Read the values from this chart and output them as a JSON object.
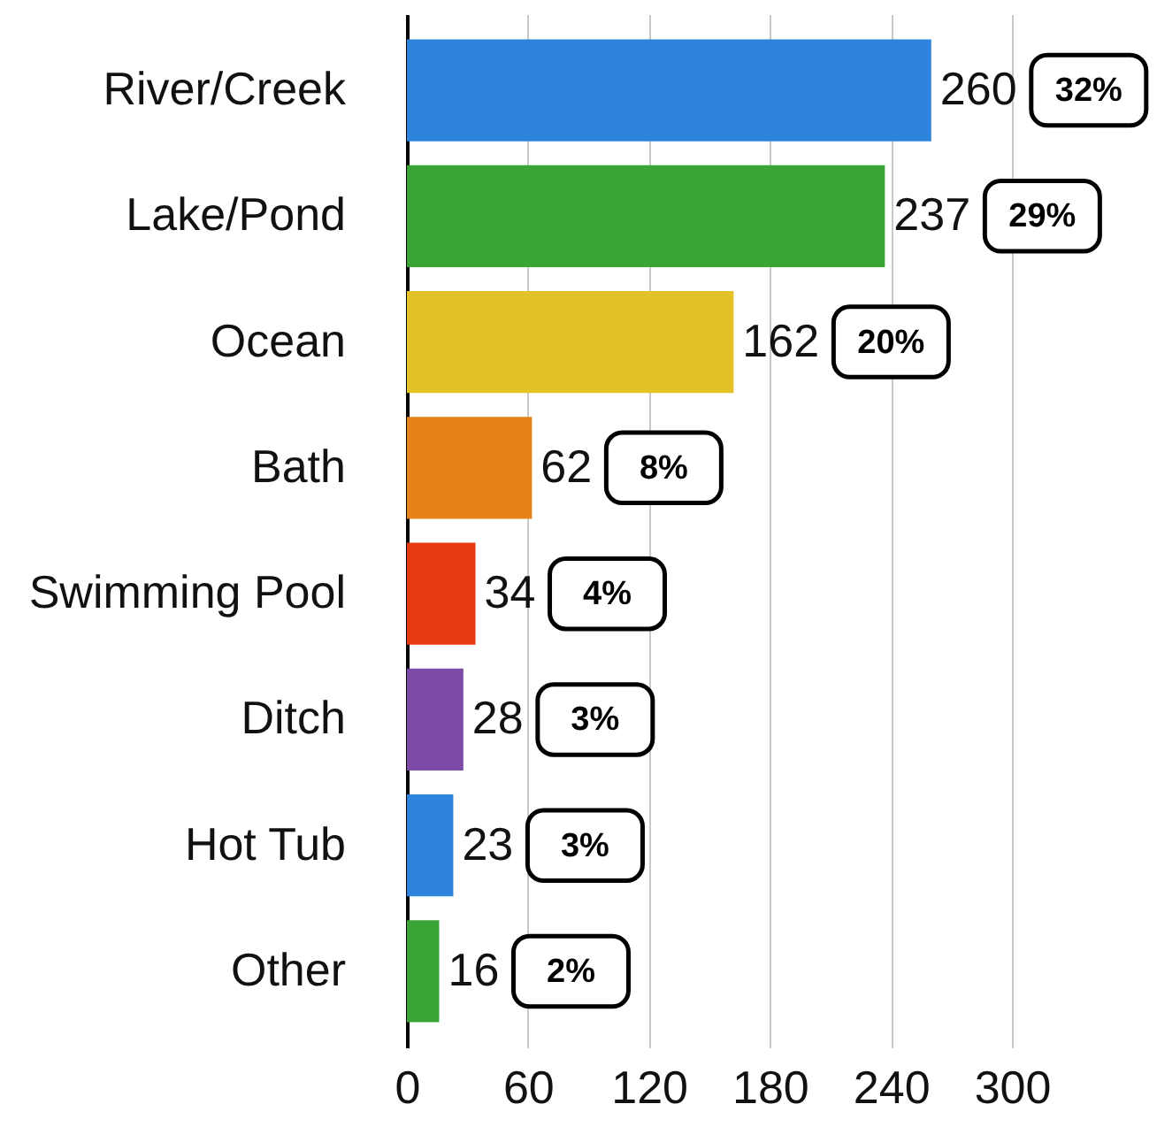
{
  "chart_data": {
    "type": "bar",
    "orientation": "horizontal",
    "categories": [
      "River/Creek",
      "Lake/Pond",
      "Ocean",
      "Bath",
      "Swimming Pool",
      "Ditch",
      "Hot Tub",
      "Other"
    ],
    "values": [
      260,
      237,
      162,
      62,
      34,
      28,
      23,
      16
    ],
    "colors": [
      "#2e84dc",
      "#3aa535",
      "#e2c226",
      "#e6821a",
      "#e83a10",
      "#7d4aa8",
      "#2e84dc",
      "#3aa535"
    ],
    "xlim": [
      0,
      300
    ],
    "xticks": [
      0,
      60,
      120,
      180,
      240,
      300
    ],
    "grid": "x",
    "data_labels": true,
    "annotations": [
      "32%",
      "29%",
      "20%",
      "8%",
      "4%",
      "3%",
      "3%",
      "2%"
    ]
  }
}
